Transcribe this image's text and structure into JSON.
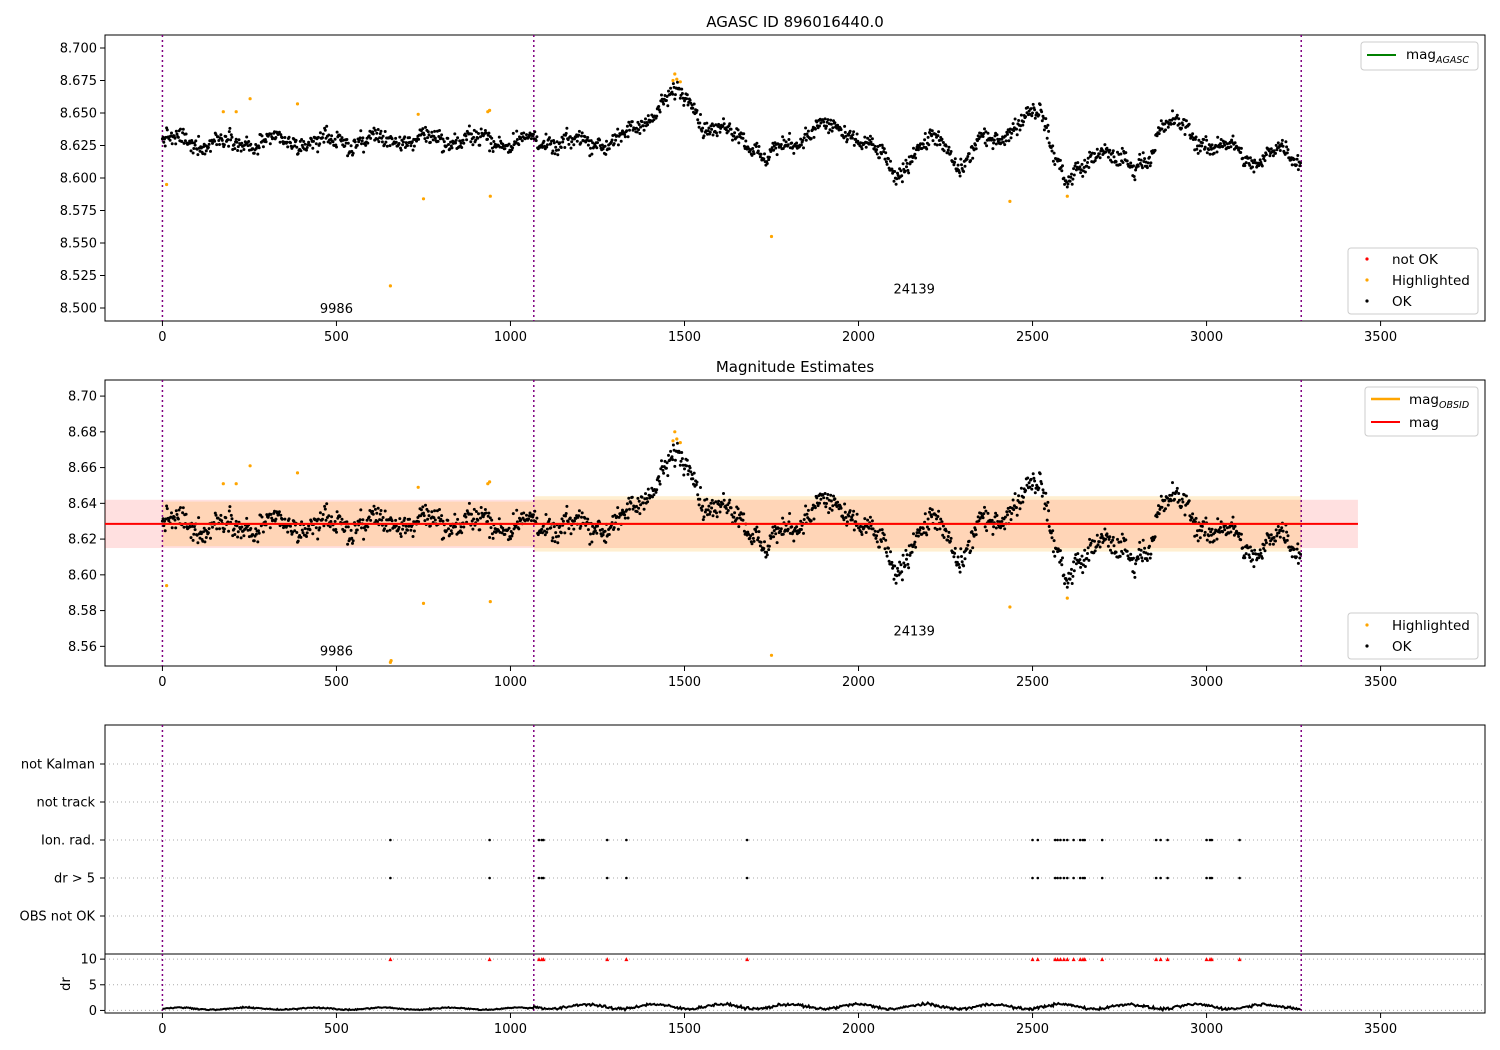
{
  "figure": {
    "panel1_title": "AGASC ID 896016440.0",
    "panel2_title": "Magnitude Estimates",
    "obsid_labels": [
      {
        "text": "9986",
        "x": 500,
        "y1": 8.496,
        "y2": 8.555
      },
      {
        "text": "24139",
        "x": 2160,
        "y1": 8.511,
        "y2": 8.566
      }
    ]
  },
  "colors": {
    "ok": "#000000",
    "highlighted": "#ffa500",
    "not_ok": "#ff0000",
    "mag_agasc": "#008000",
    "mag_obsid": "#ffa500",
    "mag": "#ff0000",
    "boundary": "#800080"
  },
  "legends": {
    "top_lines": [
      "mag_AGASC"
    ],
    "top_points": [
      "not OK",
      "Highlighted",
      "OK"
    ],
    "mid_lines": [
      "mag_OBSID",
      "mag"
    ],
    "mid_points": [
      "Highlighted",
      "OK"
    ]
  },
  "chart_data": [
    {
      "type": "scatter",
      "title": "AGASC ID 896016440.0",
      "xlim": [
        -165,
        3800
      ],
      "ylim": [
        8.49,
        8.71
      ],
      "xticks": [
        0,
        500,
        1000,
        1500,
        2000,
        2500,
        3000,
        3500
      ],
      "yticks": [
        8.5,
        8.525,
        8.55,
        8.575,
        8.6,
        8.625,
        8.65,
        8.675,
        8.7
      ],
      "ytick_decimals": 3,
      "observation_boundaries": [
        0,
        1067,
        3272
      ],
      "highlighted_points": [
        [
          12,
          8.595
        ],
        [
          175,
          8.651
        ],
        [
          212,
          8.651
        ],
        [
          252,
          8.661
        ],
        [
          388,
          8.657
        ],
        [
          655,
          8.517
        ],
        [
          735,
          8.649
        ],
        [
          750,
          8.584
        ],
        [
          935,
          8.651
        ],
        [
          940,
          8.652
        ],
        [
          942,
          8.586
        ],
        [
          1467,
          8.675
        ],
        [
          1472,
          8.68
        ],
        [
          1478,
          8.676
        ],
        [
          1488,
          8.674
        ],
        [
          1750,
          8.555
        ],
        [
          2435,
          8.582
        ],
        [
          2600,
          8.586
        ]
      ],
      "ok_points_description": "dense series of about 3270 points, mag vs index",
      "legend_placement": "top-right (line), bottom-right (points)"
    },
    {
      "type": "scatter",
      "title": "Magnitude Estimates",
      "xlim": [
        -165,
        3800
      ],
      "ylim": [
        8.549,
        8.709
      ],
      "xticks": [
        0,
        500,
        1000,
        1500,
        2000,
        2500,
        3000,
        3500
      ],
      "yticks": [
        8.56,
        8.58,
        8.6,
        8.62,
        8.64,
        8.66,
        8.68,
        8.7
      ],
      "ytick_decimals": 2,
      "observation_boundaries": [
        0,
        1067,
        3272
      ],
      "mag": 8.6285,
      "mag_band": [
        8.615,
        8.642
      ],
      "mag_band_x": [
        -165,
        3435
      ],
      "mag_obsid": 8.6285,
      "obsid_bands": [
        {
          "x": [
            0,
            1067
          ],
          "y": [
            8.616,
            8.641
          ]
        },
        {
          "x": [
            1067,
            3272
          ],
          "y": [
            8.613,
            8.644
          ]
        }
      ],
      "highlighted_points": [
        [
          12,
          8.594
        ],
        [
          175,
          8.651
        ],
        [
          212,
          8.651
        ],
        [
          252,
          8.661
        ],
        [
          388,
          8.657
        ],
        [
          655,
          8.551
        ],
        [
          657,
          8.552
        ],
        [
          735,
          8.649
        ],
        [
          750,
          8.584
        ],
        [
          935,
          8.651
        ],
        [
          940,
          8.652
        ],
        [
          942,
          8.585
        ],
        [
          1467,
          8.675
        ],
        [
          1472,
          8.68
        ],
        [
          1478,
          8.676
        ],
        [
          1488,
          8.674
        ],
        [
          1750,
          8.555
        ],
        [
          2435,
          8.582
        ],
        [
          2600,
          8.587
        ]
      ],
      "legend_placement": "top-right (lines), bottom-right (points)"
    },
    {
      "type": "scatter",
      "title": "",
      "categories": [
        "OBS not OK",
        "dr > 5",
        "Ion. rad.",
        "not track",
        "not Kalman"
      ],
      "xlim": [
        -165,
        3800
      ],
      "observation_boundaries": [
        0,
        1067,
        3272
      ],
      "flag_x": [
        655,
        940,
        1082,
        1090,
        1095,
        1278,
        1333,
        1680,
        2500,
        2515,
        2565,
        2572,
        2580,
        2590,
        2600,
        2618,
        2637,
        2645,
        2650,
        2700,
        2855,
        2868,
        2888,
        3000,
        3010,
        3015,
        3095
      ],
      "flag_rows": [
        "dr > 5",
        "Ion. rad."
      ]
    },
    {
      "type": "line",
      "title": "",
      "ylabel": "dr",
      "xlim": [
        -165,
        3800
      ],
      "ylim": [
        -0.5,
        11
      ],
      "xticks": [
        0,
        500,
        1000,
        1500,
        2000,
        2500,
        3000,
        3500
      ],
      "yticks": [
        0,
        5,
        10
      ],
      "observation_boundaries": [
        0,
        1067,
        3272
      ],
      "clipped_value": 10,
      "description": "dr per sample, mostly 0-1.5, values above 10 shown as red triangles at 10"
    }
  ]
}
